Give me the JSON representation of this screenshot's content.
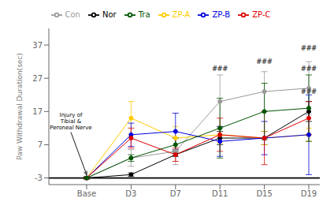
{
  "chart_data": {
    "type": "line",
    "y_label": "Paw Withdrawal Duration(sec)",
    "categories": [
      "Base",
      "D3",
      "D7",
      "D11",
      "D15",
      "D19"
    ],
    "series": [
      {
        "name": "Nor",
        "color": "#000000",
        "values": [
          -3,
          -2,
          4,
          9,
          9,
          17
        ],
        "errors": [
          0.3,
          0.5,
          0.5,
          2.0,
          2.0,
          3.0
        ]
      },
      {
        "name": "Con",
        "color": "#999999",
        "values": [
          -3,
          3,
          5,
          20,
          23,
          24
        ],
        "errors": [
          0.3,
          2.5,
          4.0,
          8.0,
          6.0,
          8.0
        ]
      },
      {
        "name": "ZP-A",
        "color": "#ffcc00",
        "values": [
          -3,
          15,
          9,
          10,
          9,
          10
        ],
        "errors": [
          0.3,
          5.0,
          3.5,
          2.5,
          2.0,
          2.0
        ]
      },
      {
        "name": "ZP-B",
        "color": "#0000dd",
        "values": [
          -3,
          10,
          11,
          8,
          9,
          10
        ],
        "errors": [
          0.3,
          3.5,
          5.5,
          4.5,
          5.0,
          12.0
        ]
      },
      {
        "name": "ZP-C",
        "color": "#dd0000",
        "values": [
          -3,
          9,
          4,
          10,
          9,
          15
        ],
        "errors": [
          0.3,
          3.0,
          2.0,
          5.0,
          8.0,
          5.0
        ]
      },
      {
        "name": "Tra",
        "color": "#005500",
        "values": [
          -3,
          3,
          7,
          12,
          17,
          18
        ],
        "errors": [
          0.3,
          1.0,
          2.0,
          9.0,
          8.5,
          10.0
        ]
      }
    ],
    "ylim": [
      -5,
      42
    ],
    "yticks": [
      -3,
      7,
      17,
      27,
      37
    ],
    "grid": false,
    "legend": "top",
    "marker": "circle",
    "hline": -3,
    "annotations": [
      {
        "text": "Injury of\nTibial &\nPeroneal Nerve",
        "x": "Base",
        "y": -3,
        "arrow": true
      },
      {
        "text": "###",
        "x": "D11",
        "y": 29
      },
      {
        "text": "###",
        "x": "D15",
        "y": 31
      },
      {
        "text": "###",
        "x": "D19",
        "y": 35
      },
      {
        "text": "###",
        "x": "D19",
        "y": 29
      },
      {
        "text": "###",
        "x": "D19",
        "y": 22
      }
    ]
  }
}
